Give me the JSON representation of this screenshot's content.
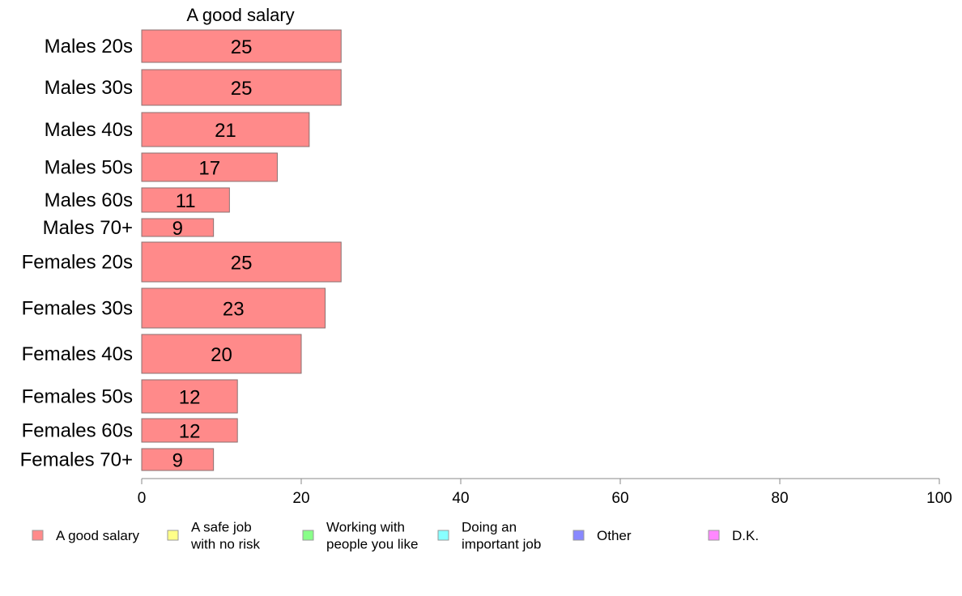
{
  "chart_data": {
    "type": "bar",
    "orientation": "horizontal",
    "title": "A good salary",
    "categories": [
      "Males 20s",
      "Males 30s",
      "Males 40s",
      "Males 50s",
      "Males 60s",
      "Males 70+",
      "Females 20s",
      "Females 30s",
      "Females 40s",
      "Females 50s",
      "Females 60s",
      "Females 70+"
    ],
    "values": [
      25,
      25,
      21,
      17,
      11,
      9,
      25,
      23,
      20,
      12,
      12,
      9
    ],
    "value_labels": [
      "25",
      "25",
      "21",
      "17",
      "11",
      "9",
      "25",
      "23",
      "20",
      "12",
      "12",
      "9"
    ],
    "xlim": [
      0,
      100
    ],
    "xticks": [
      0,
      20,
      40,
      60,
      80,
      100
    ],
    "xtick_labels": [
      "0",
      "20",
      "40",
      "60",
      "80",
      "100"
    ],
    "grid": false,
    "bar_color": "#ff8a8a",
    "legend": {
      "placement": "bottom",
      "items": [
        {
          "lines": [
            "A good salary"
          ],
          "color": "#ff8a8a"
        },
        {
          "lines": [
            "A safe job",
            "with no risk"
          ],
          "color": "#ffff88"
        },
        {
          "lines": [
            "Working with",
            "people you like"
          ],
          "color": "#88ff88"
        },
        {
          "lines": [
            "Doing an",
            "important job"
          ],
          "color": "#88ffff"
        },
        {
          "lines": [
            "Other"
          ],
          "color": "#8888ff"
        },
        {
          "lines": [
            "D.K."
          ],
          "color": "#ff88ff"
        }
      ]
    }
  }
}
